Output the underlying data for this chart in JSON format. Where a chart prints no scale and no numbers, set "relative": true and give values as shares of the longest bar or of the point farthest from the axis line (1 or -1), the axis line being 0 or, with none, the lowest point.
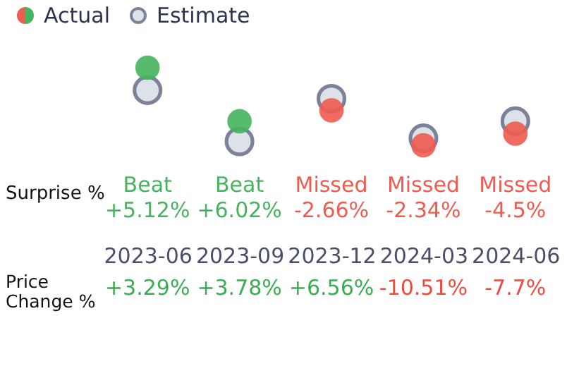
{
  "chart_data": [
    {
      "type": "scatter",
      "relative": true,
      "marker": "circle",
      "legend": "top left",
      "ylabel": "Surprise %",
      "categories": [
        "2023-06",
        "2023-09",
        "2023-12",
        "2024-03",
        "2024-06"
      ],
      "series": [
        {
          "name": "Actual",
          "color": "#45b45d",
          "colors": [
            "#45b45d",
            "#45b45d",
            "#ee5b50",
            "#ee5b50",
            "#ee5b50"
          ],
          "values": [
            1,
            0.31,
            0.45,
            0,
            0.15
          ]
        },
        {
          "name": "Estimate",
          "color": "#dde1e8",
          "values": [
            0.71,
            0.05,
            0.6,
            0.09,
            0.31
          ]
        }
      ],
      "annotations": [
        "Beat\n+5.12%",
        "Beat\n+6.02%",
        "Missed\n-2.66%",
        "Missed\n-2.34%",
        "Missed\n-4.5%"
      ]
    },
    {
      "type": "other",
      "ylabel": "Price Change %",
      "annotations": [
        "+3.29%",
        "+3.78%",
        "+6.56%",
        "-10.51%",
        "-7.7%"
      ],
      "colors": [
        "#3aac52",
        "#3aac52",
        "#3aac52",
        "#ee4a40",
        "#ee4a40"
      ]
    }
  ]
}
